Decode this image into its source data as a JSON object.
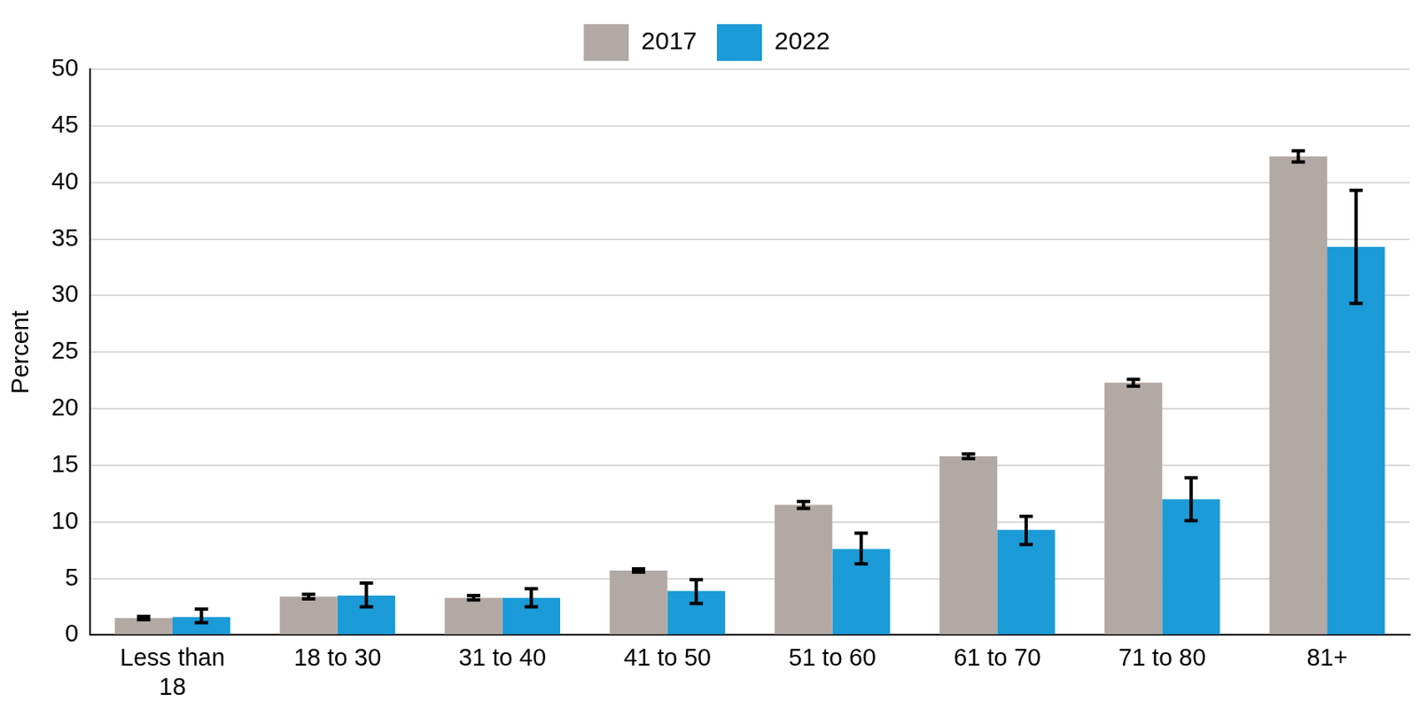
{
  "chart_data": {
    "type": "bar",
    "y_label": "Percent",
    "categories": [
      "Less than 18",
      "18 to 30",
      "31 to 40",
      "41 to 50",
      "51 to 60",
      "61 to 70",
      "71 to 80",
      "81+"
    ],
    "series": [
      {
        "name": "2017",
        "color": "#b3a9a4",
        "values": [
          1.5,
          3.4,
          3.3,
          5.7,
          11.5,
          15.8,
          22.3,
          42.3
        ],
        "error_low": [
          1.35,
          3.2,
          3.1,
          5.55,
          11.2,
          15.6,
          22.0,
          41.8
        ],
        "error_high": [
          1.65,
          3.6,
          3.5,
          5.85,
          11.8,
          16.0,
          22.6,
          42.8
        ]
      },
      {
        "name": "2022",
        "color": "#1b9bd7",
        "values": [
          1.6,
          3.5,
          3.3,
          3.9,
          7.6,
          9.3,
          12.0,
          34.3
        ],
        "error_low": [
          1.1,
          2.5,
          2.5,
          2.8,
          6.3,
          8.0,
          10.1,
          29.3
        ],
        "error_high": [
          2.3,
          4.6,
          4.1,
          4.9,
          9.0,
          10.5,
          13.9,
          39.3
        ]
      }
    ],
    "ylim": [
      0,
      50
    ],
    "yticks": [
      0,
      5,
      10,
      15,
      20,
      25,
      30,
      35,
      40,
      45,
      50
    ],
    "grid": true,
    "legend": "top"
  }
}
